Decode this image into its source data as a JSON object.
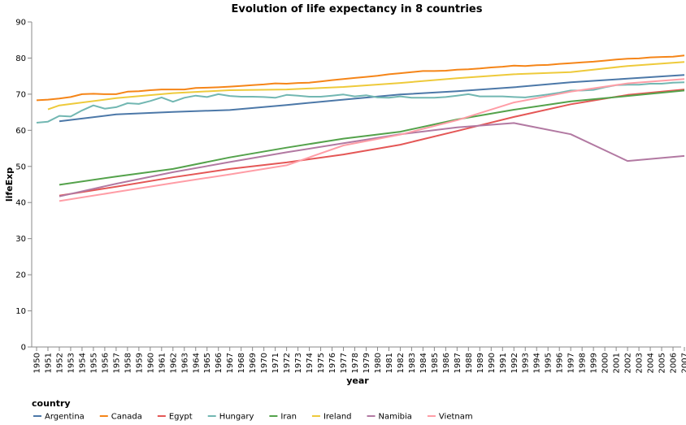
{
  "chart_data": {
    "type": "line",
    "title": "Evolution of life expectancy in 8 countries",
    "xlabel": "year",
    "ylabel": "lifeExp",
    "xlim": [
      1950,
      2007
    ],
    "ylim": [
      0,
      90
    ],
    "yticks": [
      0,
      10,
      20,
      30,
      40,
      50,
      60,
      70,
      80,
      90
    ],
    "grid": false,
    "legend": {
      "title": "country",
      "placement": "bottom"
    },
    "series": [
      {
        "name": "Argentina",
        "color": "#4c78a8",
        "x": [
          1952,
          1957,
          1962,
          1967,
          1972,
          1977,
          1982,
          1987,
          1992,
          1997,
          2002,
          2007
        ],
        "values": [
          62.5,
          64.4,
          65.1,
          65.6,
          67.0,
          68.5,
          69.9,
          70.8,
          71.9,
          73.3,
          74.3,
          75.3
        ]
      },
      {
        "name": "Canada",
        "color": "#f58518",
        "x": [
          1950,
          1951,
          1952,
          1953,
          1954,
          1955,
          1956,
          1957,
          1958,
          1959,
          1960,
          1961,
          1962,
          1963,
          1964,
          1965,
          1966,
          1967,
          1968,
          1969,
          1970,
          1971,
          1972,
          1973,
          1974,
          1975,
          1976,
          1977,
          1978,
          1979,
          1980,
          1981,
          1982,
          1983,
          1984,
          1985,
          1986,
          1987,
          1988,
          1989,
          1990,
          1991,
          1992,
          1993,
          1994,
          1995,
          1996,
          1997,
          1998,
          1999,
          2000,
          2001,
          2002,
          2003,
          2004,
          2005,
          2006,
          2007
        ],
        "values": [
          68.3,
          68.5,
          68.8,
          69.2,
          70.0,
          70.1,
          70.0,
          70.0,
          70.7,
          70.8,
          71.1,
          71.3,
          71.3,
          71.3,
          71.7,
          71.8,
          71.9,
          72.1,
          72.3,
          72.5,
          72.7,
          73.0,
          72.9,
          73.1,
          73.2,
          73.5,
          73.9,
          74.2,
          74.5,
          74.8,
          75.1,
          75.5,
          75.8,
          76.1,
          76.4,
          76.4,
          76.5,
          76.8,
          76.9,
          77.1,
          77.4,
          77.6,
          77.9,
          77.8,
          78.0,
          78.1,
          78.4,
          78.6,
          78.8,
          79.0,
          79.3,
          79.6,
          79.8,
          79.9,
          80.2,
          80.3,
          80.4,
          80.7
        ]
      },
      {
        "name": "Egypt",
        "color": "#e45756",
        "x": [
          1952,
          1957,
          1962,
          1967,
          1972,
          1977,
          1982,
          1987,
          1992,
          1997,
          2002,
          2007
        ],
        "values": [
          41.9,
          44.4,
          46.99,
          49.3,
          51.1,
          53.3,
          56.0,
          59.8,
          63.7,
          67.2,
          69.8,
          71.3
        ]
      },
      {
        "name": "Hungary",
        "color": "#72b7b2",
        "x": [
          1950,
          1951,
          1952,
          1953,
          1954,
          1955,
          1956,
          1957,
          1958,
          1959,
          1960,
          1961,
          1962,
          1963,
          1964,
          1965,
          1966,
          1967,
          1968,
          1969,
          1970,
          1971,
          1972,
          1973,
          1974,
          1975,
          1976,
          1977,
          1978,
          1979,
          1980,
          1981,
          1982,
          1983,
          1984,
          1985,
          1986,
          1987,
          1988,
          1989,
          1990,
          1991,
          1992,
          1993,
          1994,
          1995,
          1996,
          1997,
          1998,
          1999,
          2000,
          2001,
          2002,
          2003,
          2004,
          2005,
          2006,
          2007
        ],
        "values": [
          62.1,
          62.4,
          64.0,
          63.8,
          65.5,
          66.9,
          66.0,
          66.4,
          67.5,
          67.3,
          68.1,
          69.1,
          67.9,
          69.0,
          69.6,
          69.2,
          70.0,
          69.5,
          69.3,
          69.3,
          69.2,
          69.0,
          69.8,
          69.6,
          69.3,
          69.3,
          69.6,
          69.9,
          69.4,
          69.7,
          69.1,
          69.0,
          69.4,
          69.0,
          69.0,
          69.0,
          69.2,
          69.6,
          70.0,
          69.4,
          69.4,
          69.4,
          69.2,
          69.1,
          69.5,
          69.9,
          70.4,
          71.0,
          71.0,
          71.2,
          71.9,
          72.5,
          72.6,
          72.6,
          72.9,
          72.9,
          73.2,
          73.3
        ]
      },
      {
        "name": "Iran",
        "color": "#54a24b",
        "x": [
          1952,
          1957,
          1962,
          1967,
          1972,
          1977,
          1982,
          1987,
          1992,
          1997,
          2002,
          2007
        ],
        "values": [
          44.9,
          47.2,
          49.3,
          52.5,
          55.2,
          57.7,
          59.6,
          63.0,
          65.7,
          68.0,
          69.5,
          71.0
        ]
      },
      {
        "name": "Ireland",
        "color": "#eeca3b",
        "x": [
          1951,
          1952,
          1957,
          1962,
          1967,
          1972,
          1977,
          1982,
          1987,
          1992,
          1997,
          2002,
          2007
        ],
        "values": [
          65.8,
          66.9,
          68.9,
          70.3,
          71.1,
          71.3,
          72.0,
          73.1,
          74.4,
          75.5,
          76.1,
          77.8,
          78.9
        ]
      },
      {
        "name": "Namibia",
        "color": "#b279a2",
        "x": [
          1952,
          1957,
          1962,
          1967,
          1972,
          1977,
          1982,
          1987,
          1992,
          1997,
          2002,
          2007
        ],
        "values": [
          41.7,
          45.2,
          48.4,
          51.2,
          53.9,
          56.4,
          58.9,
          60.8,
          62.0,
          58.9,
          51.5,
          52.9
        ]
      },
      {
        "name": "Vietnam",
        "color": "#ff9da6",
        "x": [
          1952,
          1957,
          1962,
          1967,
          1972,
          1977,
          1982,
          1987,
          1992,
          1997,
          2002,
          2007
        ],
        "values": [
          40.4,
          42.9,
          45.4,
          47.8,
          50.3,
          55.8,
          58.8,
          62.8,
          67.7,
          70.7,
          73.0,
          74.2
        ]
      }
    ]
  }
}
